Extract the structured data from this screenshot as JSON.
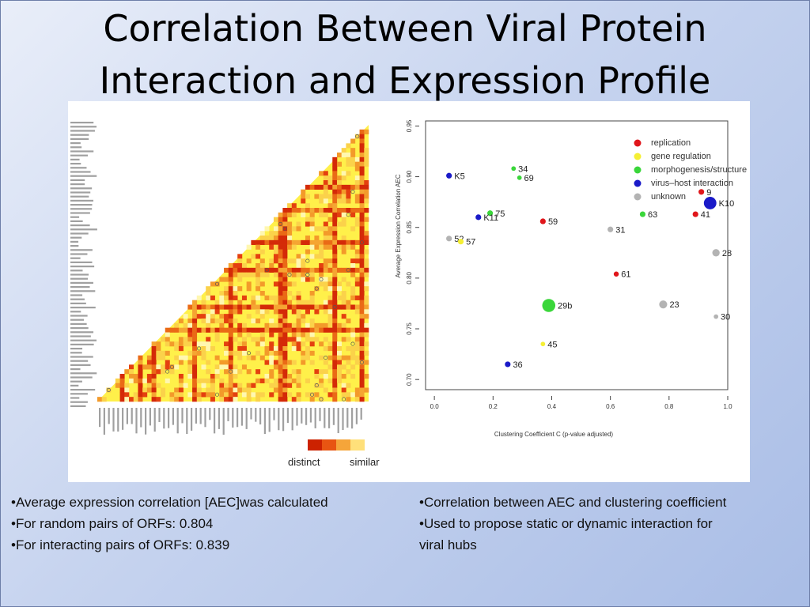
{
  "slide": {
    "title_line1": "Correlation Between Viral Protein",
    "title_line2": "Interaction and Expression Profile"
  },
  "heatmap": {
    "legend_low": "distinct",
    "legend_high": "similar",
    "colors": {
      "distinct": "#cc2200",
      "mid": "#f08a1c",
      "similar": "#fff36a"
    }
  },
  "chart_data": {
    "type": "scatter",
    "xlabel": "Clustering Coefficient C (p-value adjusted)",
    "ylabel": "Average Expression Correlation AEC",
    "xlim": [
      -0.03,
      1.0
    ],
    "ylim": [
      0.69,
      0.955
    ],
    "x_ticks": [
      "0.0",
      "0.2",
      "0.4",
      "0.6",
      "0.8",
      "1.0"
    ],
    "x_tick_values": [
      0.0,
      0.2,
      0.4,
      0.6,
      0.8,
      1.0
    ],
    "y_ticks": [
      "0.70",
      "0.75",
      "0.80",
      "0.85",
      "0.90",
      "0.95"
    ],
    "y_tick_values": [
      0.7,
      0.75,
      0.8,
      0.85,
      0.9,
      0.95
    ],
    "legend": [
      {
        "label": "replication",
        "color": "#e0161b"
      },
      {
        "label": "gene regulation",
        "color": "#f5ef34"
      },
      {
        "label": "morphogenesis/structure",
        "color": "#3ad63a"
      },
      {
        "label": "virus–host interaction",
        "color": "#1a1ac8"
      },
      {
        "label": "unknown",
        "color": "#b3b3b3"
      }
    ],
    "points": [
      {
        "label": "K5",
        "x": 0.05,
        "y": 0.901,
        "category": "virus–host interaction",
        "size": 1
      },
      {
        "label": "34",
        "x": 0.27,
        "y": 0.908,
        "category": "morphogenesis/structure",
        "size": 0.8
      },
      {
        "label": "69",
        "x": 0.29,
        "y": 0.899,
        "category": "morphogenesis/structure",
        "size": 0.8
      },
      {
        "label": "9",
        "x": 0.91,
        "y": 0.885,
        "category": "replication",
        "size": 1
      },
      {
        "label": "K10",
        "x": 0.94,
        "y": 0.874,
        "category": "virus–host interaction",
        "size": 2.2
      },
      {
        "label": "75",
        "x": 0.19,
        "y": 0.864,
        "category": "morphogenesis/structure",
        "size": 1
      },
      {
        "label": "K11",
        "x": 0.15,
        "y": 0.86,
        "category": "virus–host interaction",
        "size": 1
      },
      {
        "label": "63",
        "x": 0.71,
        "y": 0.863,
        "category": "morphogenesis/structure",
        "size": 1
      },
      {
        "label": "41",
        "x": 0.89,
        "y": 0.863,
        "category": "replication",
        "size": 1
      },
      {
        "label": "59",
        "x": 0.37,
        "y": 0.856,
        "category": "replication",
        "size": 1
      },
      {
        "label": "31",
        "x": 0.6,
        "y": 0.848,
        "category": "unknown",
        "size": 1
      },
      {
        "label": "52",
        "x": 0.05,
        "y": 0.839,
        "category": "unknown",
        "size": 1
      },
      {
        "label": "57",
        "x": 0.09,
        "y": 0.836,
        "category": "gene regulation",
        "size": 1
      },
      {
        "label": "28",
        "x": 0.96,
        "y": 0.825,
        "category": "unknown",
        "size": 1.3
      },
      {
        "label": "61",
        "x": 0.62,
        "y": 0.804,
        "category": "replication",
        "size": 0.9
      },
      {
        "label": "29b",
        "x": 0.39,
        "y": 0.773,
        "category": "morphogenesis/structure",
        "size": 2.3
      },
      {
        "label": "23",
        "x": 0.78,
        "y": 0.774,
        "category": "unknown",
        "size": 1.4
      },
      {
        "label": "30",
        "x": 0.96,
        "y": 0.762,
        "category": "unknown",
        "size": 0.8
      },
      {
        "label": "45",
        "x": 0.37,
        "y": 0.735,
        "category": "gene regulation",
        "size": 0.8
      },
      {
        "label": "36",
        "x": 0.25,
        "y": 0.715,
        "category": "virus–host interaction",
        "size": 1
      }
    ]
  },
  "bullets_left": [
    "•Average expression correlation  [AEC]was calculated",
    "•For random pairs of ORFs:  0.804",
    "•For interacting pairs of ORFs: 0.839"
  ],
  "bullets_right": [
    "•Correlation between AEC and clustering coefficient",
    "•Used to propose static or dynamic interaction for",
    "viral hubs"
  ]
}
